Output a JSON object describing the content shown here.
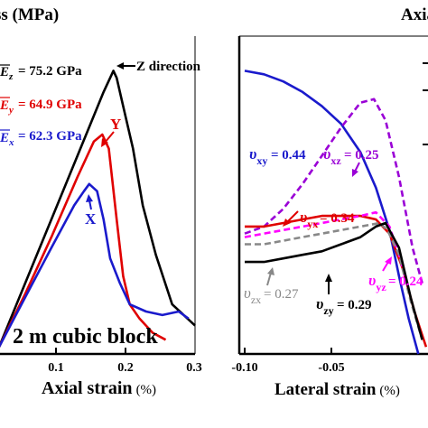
{
  "chart_data": [
    {
      "type": "line",
      "panel": "left",
      "ylabel_partial": "ss (MPa)",
      "xlabel": "Axial strain",
      "xlabel_unit": "(%)",
      "xticks": [
        0.1,
        0.2,
        0.3
      ],
      "xlim": [
        0.0,
        0.3
      ],
      "annotation_block": "2 m cubic block",
      "legend_text": {
        "ez": "= 75.2 GPa",
        "ey": "= 64.9 GPa",
        "ex": "= 62.3 GPa"
      },
      "series": [
        {
          "name": "Z direction",
          "color": "#000000",
          "x": [
            0.0,
            0.04,
            0.08,
            0.12,
            0.16,
            0.175,
            0.18,
            0.19,
            0.205,
            0.22,
            0.24,
            0.265,
            0.3
          ],
          "y": [
            0.02,
            0.2,
            0.38,
            0.56,
            0.74,
            0.8,
            0.78,
            0.7,
            0.58,
            0.42,
            0.28,
            0.14,
            0.08
          ]
        },
        {
          "name": "Y",
          "color": "#e00000",
          "x": [
            0.0,
            0.04,
            0.08,
            0.12,
            0.145,
            0.158,
            0.168,
            0.18,
            0.19,
            0.2,
            0.215,
            0.235,
            0.255
          ],
          "y": [
            0.02,
            0.17,
            0.33,
            0.5,
            0.6,
            0.62,
            0.58,
            0.38,
            0.22,
            0.14,
            0.1,
            0.06,
            0.04
          ]
        },
        {
          "name": "X",
          "color": "#1a1acc",
          "x": [
            0.0,
            0.04,
            0.08,
            0.115,
            0.13,
            0.138,
            0.15,
            0.16,
            0.17,
            0.185,
            0.2,
            0.225,
            0.25,
            0.275,
            0.29
          ],
          "y": [
            0.02,
            0.16,
            0.3,
            0.42,
            0.46,
            0.48,
            0.46,
            0.38,
            0.27,
            0.2,
            0.14,
            0.12,
            0.11,
            0.12,
            0.1
          ]
        }
      ]
    },
    {
      "type": "line",
      "panel": "right",
      "ylabel_partial": "Axia",
      "xlabel": "Lateral strain",
      "xlabel_unit": "(%)",
      "xticks": [
        "-0.10",
        "-0.05"
      ],
      "xlim": [
        -0.1,
        -0.005
      ],
      "annotations": {
        "vxy": "= 0.44",
        "vxz": "= 0.25",
        "vyx": "= 0.34",
        "vyz": "= 0.24",
        "vzx": "= 0.27",
        "vzy": "= 0.29"
      },
      "series": [
        {
          "label": "v_xy",
          "color": "#1a1acc",
          "style": "solid",
          "x": [
            -0.1,
            -0.09,
            -0.08,
            -0.07,
            -0.06,
            -0.05,
            -0.04,
            -0.032,
            -0.025,
            -0.02,
            -0.015,
            -0.01
          ],
          "y": [
            0.8,
            0.79,
            0.77,
            0.74,
            0.7,
            0.65,
            0.57,
            0.47,
            0.35,
            0.22,
            0.1,
            0.0
          ]
        },
        {
          "label": "v_xz",
          "color": "#9a00d6",
          "style": "dashed",
          "x": [
            -0.1,
            -0.09,
            -0.08,
            -0.07,
            -0.06,
            -0.05,
            -0.04,
            -0.033,
            -0.027,
            -0.02,
            -0.013,
            -0.008
          ],
          "y": [
            0.34,
            0.36,
            0.41,
            0.48,
            0.56,
            0.64,
            0.71,
            0.72,
            0.66,
            0.5,
            0.3,
            0.2
          ]
        },
        {
          "label": "v_yx",
          "color": "#e00000",
          "style": "solid",
          "x": [
            -0.1,
            -0.09,
            -0.08,
            -0.07,
            -0.06,
            -0.05,
            -0.04,
            -0.032,
            -0.025,
            -0.018,
            -0.012,
            -0.006
          ],
          "y": [
            0.36,
            0.36,
            0.37,
            0.38,
            0.39,
            0.39,
            0.39,
            0.38,
            0.34,
            0.24,
            0.12,
            0.02
          ]
        },
        {
          "label": "v_yz",
          "color": "#ff00ff",
          "style": "dashed",
          "x": [
            -0.1,
            -0.09,
            -0.08,
            -0.07,
            -0.06,
            -0.05,
            -0.04,
            -0.032,
            -0.025,
            -0.02,
            -0.015
          ],
          "y": [
            0.33,
            0.34,
            0.35,
            0.36,
            0.37,
            0.38,
            0.39,
            0.4,
            0.36,
            0.28,
            0.18
          ]
        },
        {
          "label": "v_zx",
          "color": "#888888",
          "style": "dashed",
          "x": [
            -0.1,
            -0.09,
            -0.08,
            -0.07,
            -0.06,
            -0.05,
            -0.04,
            -0.03,
            -0.026,
            -0.02,
            -0.014,
            -0.008
          ],
          "y": [
            0.31,
            0.31,
            0.32,
            0.33,
            0.34,
            0.35,
            0.36,
            0.37,
            0.35,
            0.28,
            0.15,
            0.04
          ]
        },
        {
          "label": "v_zy",
          "color": "#000000",
          "style": "solid",
          "x": [
            -0.1,
            -0.09,
            -0.08,
            -0.07,
            -0.06,
            -0.05,
            -0.04,
            -0.032,
            -0.027,
            -0.02,
            -0.014,
            -0.008
          ],
          "y": [
            0.26,
            0.26,
            0.27,
            0.28,
            0.29,
            0.31,
            0.33,
            0.36,
            0.37,
            0.3,
            0.16,
            0.04
          ]
        }
      ]
    }
  ]
}
